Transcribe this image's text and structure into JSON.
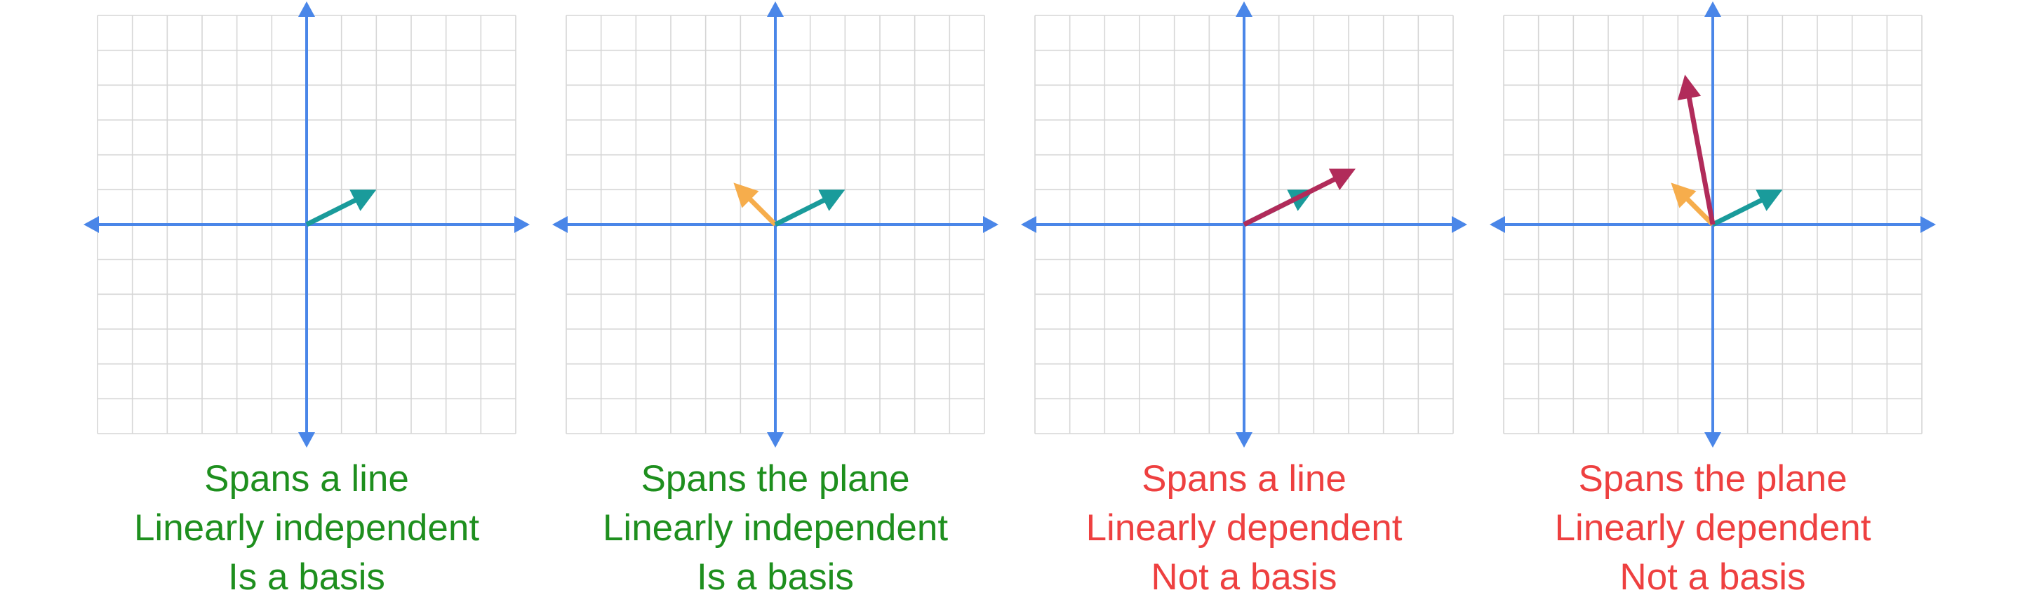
{
  "colors": {
    "grid": "#d6d6d6",
    "axis": "#4a86e8",
    "teal_vector": "#1a9b9b",
    "orange_vector": "#f6ad4c",
    "crimson_vector": "#b12b5a",
    "good": "#1e8f1e",
    "bad": "#ee4040"
  },
  "panels": [
    {
      "vectors": [
        {
          "name": "teal",
          "color_key": "teal_vector",
          "x": 2,
          "y": 1
        }
      ],
      "status": "good",
      "captions": [
        "Spans a line",
        "Linearly independent",
        "Is a basis"
      ]
    },
    {
      "vectors": [
        {
          "name": "orange",
          "color_key": "orange_vector",
          "x": -1.2,
          "y": 1.2
        },
        {
          "name": "teal",
          "color_key": "teal_vector",
          "x": 2,
          "y": 1
        }
      ],
      "status": "good",
      "captions": [
        "Spans the plane",
        "Linearly independent",
        "Is a basis"
      ]
    },
    {
      "vectors": [
        {
          "name": "teal",
          "color_key": "teal_vector",
          "x": 2,
          "y": 1
        },
        {
          "name": "crimson",
          "color_key": "crimson_vector",
          "x": 3.2,
          "y": 1.6
        }
      ],
      "status": "bad",
      "captions": [
        "Spans a line",
        "Linearly dependent",
        "Not a basis"
      ]
    },
    {
      "vectors": [
        {
          "name": "orange",
          "color_key": "orange_vector",
          "x": -1.2,
          "y": 1.2
        },
        {
          "name": "teal",
          "color_key": "teal_vector",
          "x": 2,
          "y": 1
        },
        {
          "name": "crimson",
          "color_key": "crimson_vector",
          "x": -0.8,
          "y": 4.3
        }
      ],
      "status": "bad",
      "captions": [
        "Spans the plane",
        "Linearly dependent",
        "Not a basis"
      ]
    }
  ]
}
